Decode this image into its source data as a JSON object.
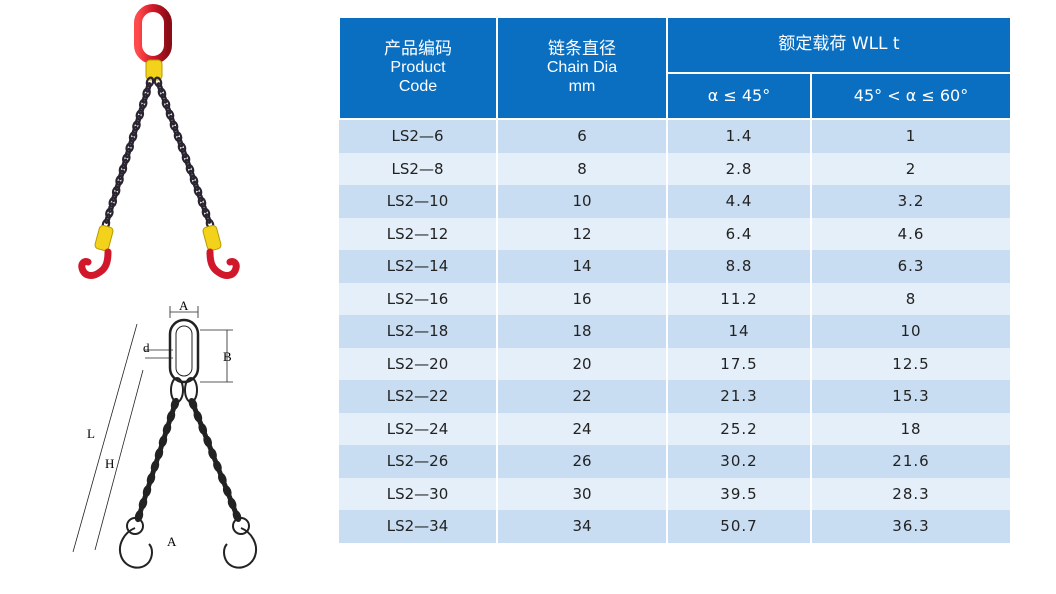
{
  "table": {
    "header": {
      "code_cn": "产品编码",
      "code_en_1": "Product",
      "code_en_2": "Code",
      "dia_cn": "链条直径",
      "dia_en": "Chain Dia",
      "dia_unit": "mm",
      "wll_title": "额定载荷 WLL t",
      "wll_sub_1": "α ≤ 45°",
      "wll_sub_2": "45° < α ≤ 60°"
    },
    "rows": [
      {
        "code": "LS2—6",
        "dia": "6",
        "wll45": "1.4",
        "wll60": "1"
      },
      {
        "code": "LS2—8",
        "dia": "8",
        "wll45": "2.8",
        "wll60": "2"
      },
      {
        "code": "LS2—10",
        "dia": "10",
        "wll45": "4.4",
        "wll60": "3.2"
      },
      {
        "code": "LS2—12",
        "dia": "12",
        "wll45": "6.4",
        "wll60": "4.6"
      },
      {
        "code": "LS2—14",
        "dia": "14",
        "wll45": "8.8",
        "wll60": "6.3"
      },
      {
        "code": "LS2—16",
        "dia": "16",
        "wll45": "11.2",
        "wll60": "8"
      },
      {
        "code": "LS2—18",
        "dia": "18",
        "wll45": "14",
        "wll60": "10"
      },
      {
        "code": "LS2—20",
        "dia": "20",
        "wll45": "17.5",
        "wll60": "12.5"
      },
      {
        "code": "LS2—22",
        "dia": "22",
        "wll45": "21.3",
        "wll60": "15.3"
      },
      {
        "code": "LS2—24",
        "dia": "24",
        "wll45": "25.2",
        "wll60": "18"
      },
      {
        "code": "LS2—26",
        "dia": "26",
        "wll45": "30.2",
        "wll60": "21.6"
      },
      {
        "code": "LS2—30",
        "dia": "30",
        "wll45": "39.5",
        "wll60": "28.3"
      },
      {
        "code": "LS2—34",
        "dia": "34",
        "wll45": "50.7",
        "wll60": "36.3"
      }
    ]
  },
  "drawing": {
    "label_a": "A",
    "label_b": "B",
    "label_d": "d",
    "label_l": "L",
    "label_h": "H",
    "label_a_hook": "A"
  },
  "colors": {
    "header_blue": "#0b6fc1",
    "row_dark": "#c8ddf2",
    "row_light": "#e4eff9",
    "master_link_red": "#d0182a",
    "coupler_yellow": "#f2d21a",
    "chain_black": "#2a2430"
  }
}
